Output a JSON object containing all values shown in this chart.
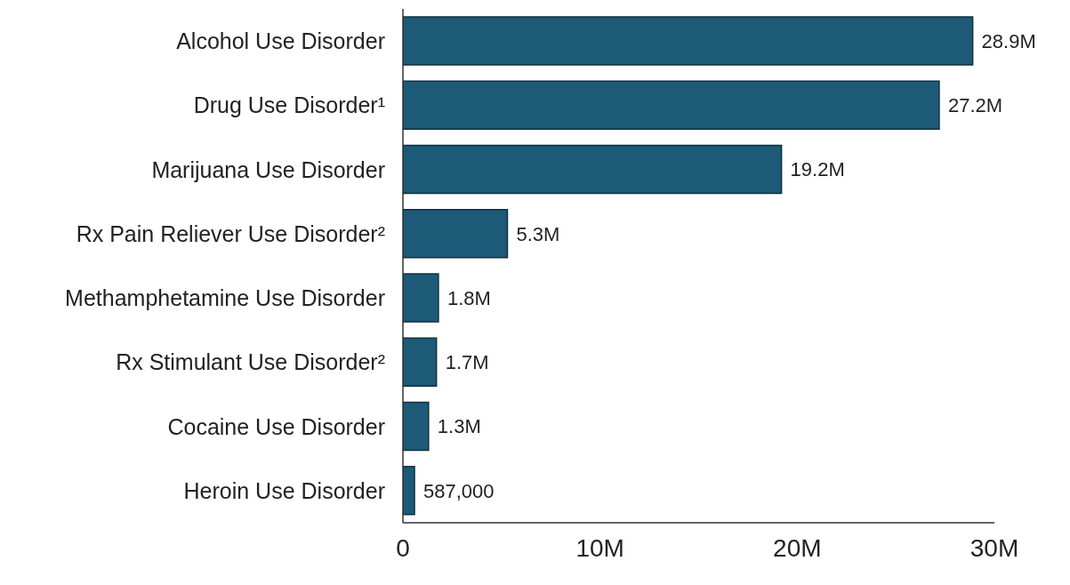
{
  "chart_data": {
    "type": "bar",
    "orientation": "horizontal",
    "categories": [
      "Alcohol Use Disorder",
      "Drug Use Disorder¹",
      "Marijuana Use Disorder",
      "Rx Pain Reliever Use Disorder²",
      "Methamphetamine Use Disorder",
      "Rx Stimulant Use Disorder²",
      "Cocaine Use Disorder",
      "Heroin Use Disorder"
    ],
    "values": [
      28900000,
      27200000,
      19200000,
      5300000,
      1800000,
      1700000,
      1300000,
      587000
    ],
    "value_labels": [
      "28.9M",
      "27.2M",
      "19.2M",
      "5.3M",
      "1.8M",
      "1.7M",
      "1.3M",
      "587,000"
    ],
    "color": "#1d5a78",
    "xlim": [
      0,
      30000000
    ],
    "xticks": [
      0,
      {
        "value": 10000000,
        "label": "10M"
      },
      {
        "value": 20000000,
        "label": "20M"
      },
      {
        "value": 30000000,
        "label": "30M"
      }
    ],
    "grid": false,
    "legend": false
  }
}
